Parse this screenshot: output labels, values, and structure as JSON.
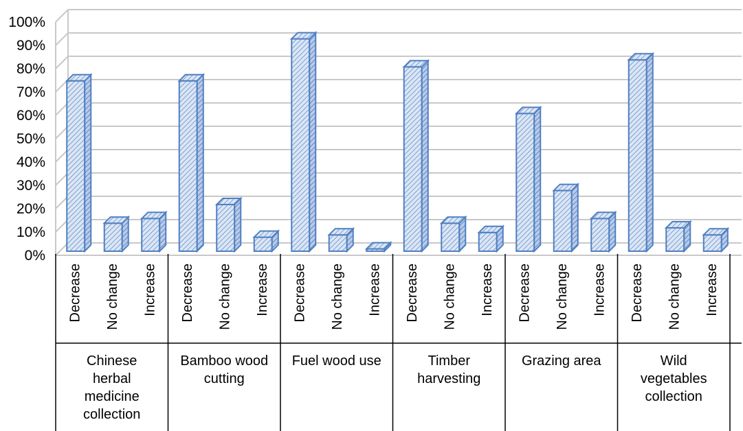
{
  "chart_data": {
    "type": "bar",
    "three_d": true,
    "fill_pattern": "diagonal-hatch",
    "colors": {
      "bar_fill": "#dbe6f5",
      "bar_hatch": "#7d9fd1",
      "bar_edge": "#4f7fc2",
      "grid": "#c8c8c8"
    },
    "yaxis": {
      "ticks": [
        "0%",
        "10%",
        "20%",
        "30%",
        "40%",
        "50%",
        "60%",
        "70%",
        "80%",
        "90%",
        "100%"
      ],
      "ylim": [
        0,
        100
      ]
    },
    "legend": "none",
    "grid": true,
    "groups": [
      {
        "label": [
          "Chinese",
          "herbal",
          "medicine",
          "collection"
        ],
        "categories": [
          "Decrease",
          "No change",
          "Increase"
        ],
        "values": [
          73,
          12,
          14
        ]
      },
      {
        "label": [
          "Bamboo wood",
          "cutting"
        ],
        "categories": [
          "Decrease",
          "No change",
          "Increase"
        ],
        "values": [
          73,
          20,
          6
        ]
      },
      {
        "label": [
          "Fuel wood use"
        ],
        "categories": [
          "Decrease",
          "No change",
          "Increase"
        ],
        "values": [
          91,
          7,
          1
        ]
      },
      {
        "label": [
          "Timber",
          "harvesting"
        ],
        "categories": [
          "Decrease",
          "No change",
          "Increase"
        ],
        "values": [
          79,
          12,
          8
        ]
      },
      {
        "label": [
          "Grazing area"
        ],
        "categories": [
          "Decrease",
          "No change",
          "Increase"
        ],
        "values": [
          59,
          26,
          14
        ]
      },
      {
        "label": [
          "Wild",
          "vegetables",
          "collection"
        ],
        "categories": [
          "Decrease",
          "No change",
          "Increase"
        ],
        "values": [
          82,
          10,
          7
        ]
      }
    ]
  }
}
